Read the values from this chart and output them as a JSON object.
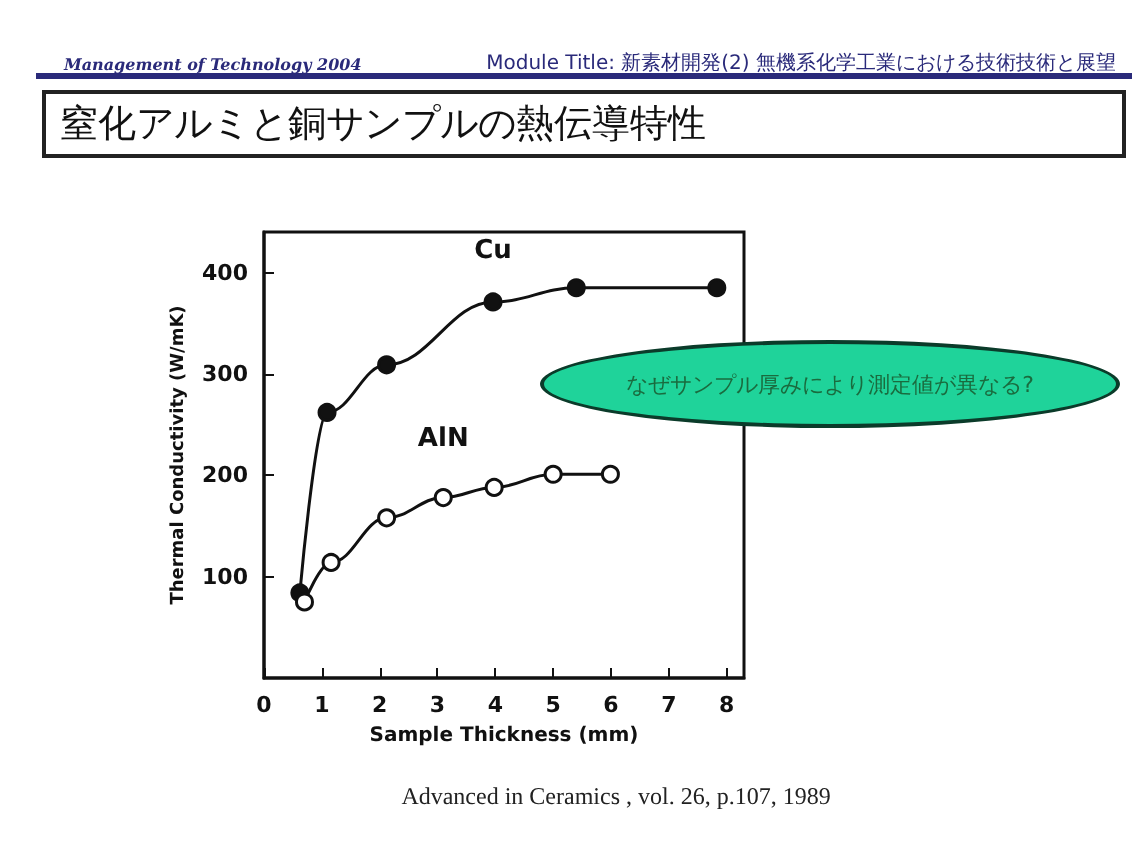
{
  "chart_data": {
    "type": "line",
    "title": "窒化アルミと銅サンプルの熱伝導特性",
    "xlabel": "Sample Thickness (mm)",
    "ylabel": "Thermal Conductivity (W/mK)",
    "annotations": [
      "Management of Technology 2004",
      "Module Title: 新素材開発(2) 無機系化学工業における技術技術と展望",
      "なぜサンプル厚みにより測定値が異なる?",
      "Advanced in Ceramics , vol. 26, p.107, 1989"
    ],
    "series": [
      {
        "name": "Cu",
        "color": "#111111",
        "x": [
          0.62,
          1.09,
          2.12,
          3.96,
          5.4,
          7.83
        ],
        "values": [
          84,
          262,
          309,
          371,
          385,
          385
        ]
      },
      {
        "name": "AlN",
        "color": "#111111",
        "x": [
          0.7,
          1.16,
          2.12,
          3.1,
          3.98,
          5.0,
          5.99
        ],
        "values": [
          75,
          114,
          158,
          178,
          188,
          201,
          201
        ]
      }
    ],
    "xlim": [
      0,
      8.3
    ],
    "xticks": [
      0,
      1,
      2,
      3,
      4,
      5,
      6,
      7,
      8
    ],
    "ylim": [
      0,
      440
    ],
    "yticks": [
      100,
      200,
      300,
      400
    ],
    "grid": false,
    "legend": false,
    "marker": "circle",
    "line_style": "solid"
  }
}
